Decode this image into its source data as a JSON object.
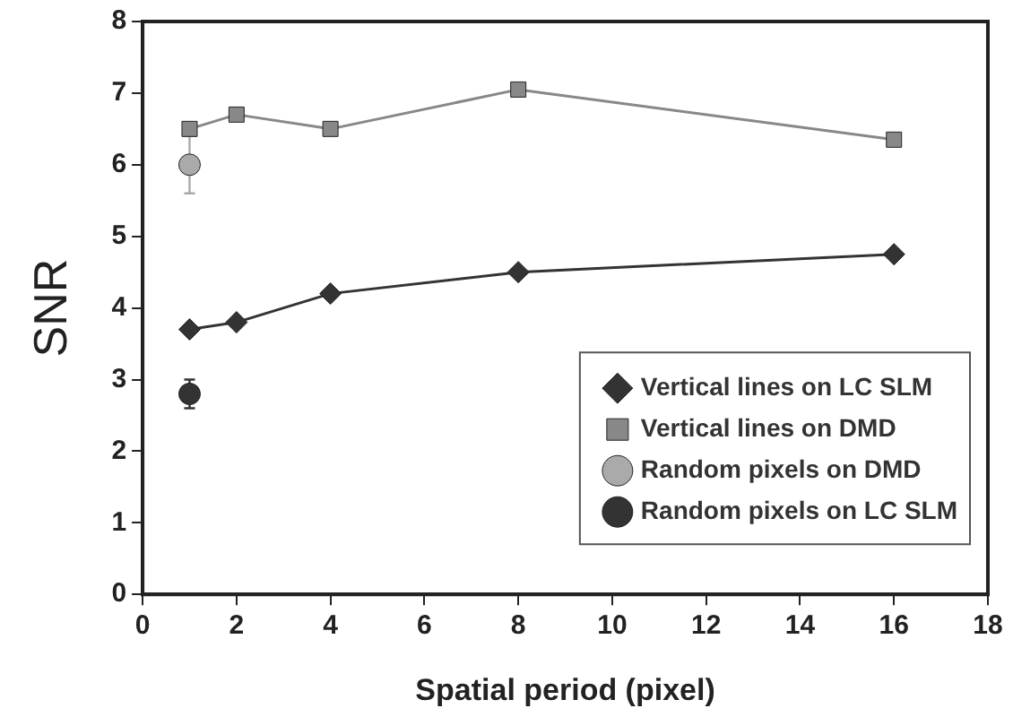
{
  "chart_data": {
    "type": "line",
    "xlabel": "Spatial period (pixel)",
    "ylabel": "SNR",
    "xlim": [
      0,
      18
    ],
    "xticks": [
      0,
      2,
      4,
      6,
      8,
      10,
      12,
      14,
      16,
      18
    ],
    "ylim": [
      0,
      8
    ],
    "yticks": [
      0,
      1,
      2,
      3,
      4,
      5,
      6,
      7,
      8
    ],
    "grid": false,
    "legend": "bottom right",
    "series": [
      {
        "name": "Vertical lines on LC SLM",
        "type": "line",
        "marker": "diamond",
        "color": "#333333",
        "x": [
          1,
          2,
          4,
          8,
          16
        ],
        "values": [
          3.7,
          3.8,
          4.2,
          4.5,
          4.75
        ]
      },
      {
        "name": "Vertical lines on DMD",
        "type": "line",
        "marker": "square",
        "color": "#888888",
        "x": [
          1,
          2,
          4,
          8,
          16
        ],
        "values": [
          6.5,
          6.7,
          6.5,
          7.05,
          6.35
        ]
      },
      {
        "name": "Random pixels on DMD",
        "type": "scatter",
        "marker": "circle",
        "color": "#aaaaaa",
        "x": [
          1
        ],
        "values": [
          6.0
        ],
        "errors": [
          0.4
        ]
      },
      {
        "name": "Random pixels on LC SLM",
        "type": "scatter",
        "marker": "circle",
        "color": "#333333",
        "x": [
          1
        ],
        "values": [
          2.8
        ],
        "errors": [
          0.2
        ]
      }
    ]
  }
}
